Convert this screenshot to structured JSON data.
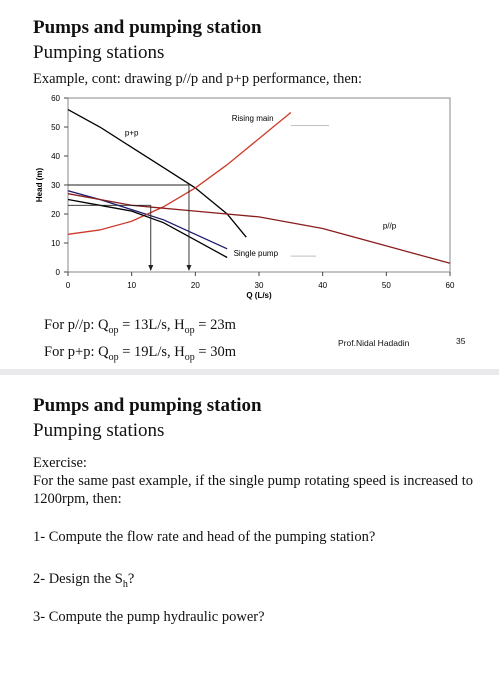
{
  "slide1": {
    "title": "Pumps and pumping station",
    "subtitle": "Pumping stations",
    "intro": "Example, cont: drawing p//p and p+p performance, then:",
    "formula_pp": {
      "prefix": "For p//p: Q",
      "q_sub": "op",
      "q_val": " = 13L/s,  H",
      "h_sub": "op",
      "h_val": " = 23m"
    },
    "formula_ps": {
      "prefix": "For p+p: Q",
      "q_sub": "op",
      "q_val": " = 19L/s,  H",
      "h_sub": "op",
      "h_val": " = 30m"
    },
    "author": "Prof.Nidal Hadadin",
    "page_number": "35"
  },
  "chart_data": {
    "type": "line",
    "xlabel_value": "30",
    "xlabel": "Q (L/s)",
    "ylabel": "Head (m)",
    "xlim": [
      0,
      60
    ],
    "ylim": [
      0,
      60
    ],
    "x_ticks": [
      "0",
      "10",
      "20",
      "40",
      "50",
      "60"
    ],
    "y_ticks": [
      "0",
      "10",
      "20",
      "30",
      "40",
      "50",
      "60"
    ],
    "grid": false,
    "labels": {
      "series": "p+p",
      "rising": "Rising main",
      "single": "Single pump",
      "parallel": "p//p"
    },
    "series": [
      {
        "name": "p+p",
        "color": "#000000",
        "x": [
          0,
          5,
          10,
          15,
          20,
          25,
          28
        ],
        "y": [
          56,
          50,
          43,
          36,
          29,
          20,
          12
        ]
      },
      {
        "name": "Single pump",
        "color": "#1a1a6e",
        "x": [
          0,
          5,
          10,
          15,
          20,
          25
        ],
        "y": [
          28,
          25,
          21.5,
          18,
          13,
          8
        ]
      },
      {
        "name": "Rising main",
        "color": "#cc3a2a",
        "x": [
          0,
          5,
          10,
          15,
          20,
          25,
          30,
          35
        ],
        "y": [
          13,
          14.5,
          17.5,
          22.5,
          29,
          37,
          46,
          55
        ]
      },
      {
        "name": "p//p",
        "color": "#8a1e1e",
        "x": [
          0,
          10,
          20,
          30,
          40,
          50,
          60
        ],
        "y": [
          27,
          23,
          21,
          19,
          15,
          9,
          3
        ]
      },
      {
        "name": "black-second",
        "color": "#000000",
        "x": [
          0,
          5,
          10,
          15,
          20,
          25
        ],
        "y": [
          25,
          23,
          21,
          17,
          11,
          5
        ]
      }
    ],
    "op_lines": [
      {
        "head": 30,
        "q": 19
      },
      {
        "head": 23,
        "q": 13
      }
    ]
  },
  "slide2": {
    "title": "Pumps and pumping station",
    "subtitle": "Pumping stations",
    "exercise": "Exercise:",
    "body": "For the same past example, if the single pump rotating speed is increased to 1200rpm, then:",
    "q1": "1- Compute the flow rate and head of the pumping station?",
    "q2_prefix": "2- Design the S",
    "q2_sub": "h",
    "q2_suffix": "?",
    "q3": "3- Compute the pump hydraulic power?"
  }
}
